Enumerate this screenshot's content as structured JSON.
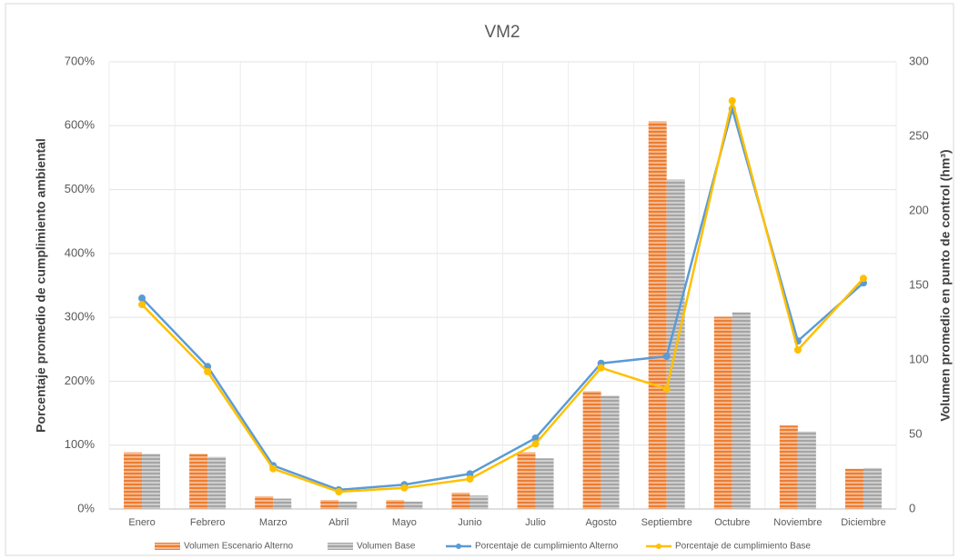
{
  "chart_data": {
    "type": "bar_line",
    "title": "VM2",
    "ylabel": "Porcentaje promedio de cumplimiento ambiental",
    "y2label": "Volumen promedio en punto de control (hm³)",
    "categories": [
      "Enero",
      "Febrero",
      "Marzo",
      "Abril",
      "Mayo",
      "Junio",
      "Julio",
      "Agosto",
      "Septiembre",
      "Octubre",
      "Noviembre",
      "Diciembre"
    ],
    "series": [
      {
        "name": "Volumen Escenario Alterno",
        "type": "bar",
        "axis": "y2",
        "color": "#ed7d31",
        "values": [
          38,
          37,
          8.5,
          6,
          6,
          11,
          38,
          79,
          260,
          129,
          56,
          27
        ]
      },
      {
        "name": "Volumen Base",
        "type": "bar",
        "axis": "y2",
        "color": "#a5a5a5",
        "values": [
          37,
          35,
          7,
          5,
          5,
          9,
          34,
          76,
          221,
          132,
          52,
          27.5
        ]
      },
      {
        "name": "Porcentaje de cumplimiento Alterno",
        "type": "line",
        "axis": "y",
        "color": "#5b9bd5",
        "values": [
          330,
          223,
          68,
          30,
          38,
          55,
          111,
          228,
          239,
          626,
          263,
          354
        ]
      },
      {
        "name": "Porcentaje de cumplimiento Base",
        "type": "line",
        "axis": "y",
        "color": "#ffc000",
        "values": [
          320,
          215,
          63,
          27,
          33,
          47,
          102,
          221,
          188,
          639,
          249,
          361
        ]
      }
    ],
    "ylim": [
      0,
      700
    ],
    "yticks": [
      {
        "value": 0,
        "label": "0%"
      },
      {
        "value": 100,
        "label": "100%"
      },
      {
        "value": 200,
        "label": "200%"
      },
      {
        "value": 300,
        "label": "300%"
      },
      {
        "value": 400,
        "label": "400%"
      },
      {
        "value": 500,
        "label": "500%"
      },
      {
        "value": 600,
        "label": "600%"
      },
      {
        "value": 700,
        "label": "700%"
      }
    ],
    "y2lim": [
      0,
      300
    ],
    "y2ticks": [
      0,
      50,
      100,
      150,
      200,
      250,
      300
    ],
    "grid": true,
    "legend": "bottom"
  }
}
